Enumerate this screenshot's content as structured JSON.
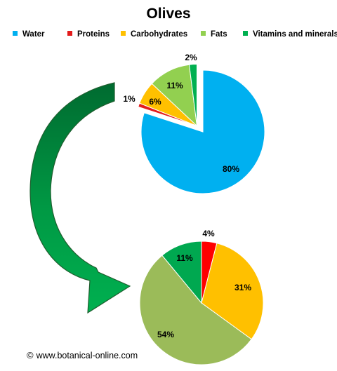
{
  "chart_data": [
    {
      "type": "pie",
      "title": "Olives",
      "legend": {
        "placement": "top",
        "entries": [
          "Water",
          "Proteins",
          "Carbohydrates",
          "Fats",
          "Vitamins and minerals"
        ]
      },
      "slices": [
        {
          "name": "Water",
          "value": 80,
          "label": "80%",
          "color": "#00b0f0"
        },
        {
          "name": "Proteins",
          "value": 1,
          "label": "1%",
          "color": "#e31b1b"
        },
        {
          "name": "Carbohydrates",
          "value": 6,
          "label": "6%",
          "color": "#ffc000"
        },
        {
          "name": "Fats",
          "value": 11,
          "label": "11%",
          "color": "#92d050"
        },
        {
          "name": "Vitamins and minerals",
          "value": 2,
          "label": "2%",
          "color": "#00b050"
        }
      ]
    },
    {
      "type": "pie",
      "title": "",
      "slices": [
        {
          "name": "Proteins",
          "value": 4,
          "label": "4%",
          "color": "#ff0000"
        },
        {
          "name": "Carbohydrates",
          "value": 31,
          "label": "31%",
          "color": "#ffc000"
        },
        {
          "name": "Fats",
          "value": 54,
          "label": "54%",
          "color": "#9bbb59"
        },
        {
          "name": "Vitamins and minerals",
          "value": 11,
          "label": "11%",
          "color": "#00a850"
        }
      ]
    }
  ],
  "footer": {
    "symbol": "©",
    "text": "www.botanical-online.com"
  }
}
